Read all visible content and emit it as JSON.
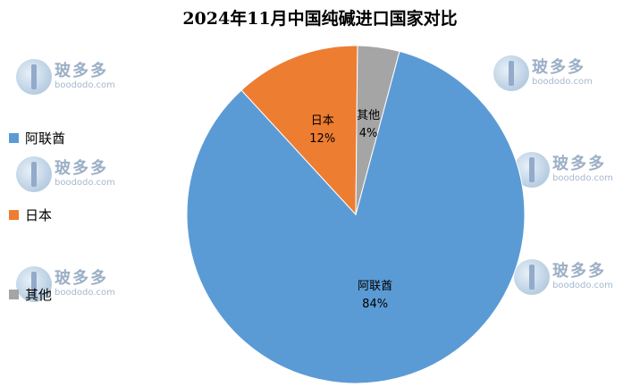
{
  "chart_data": {
    "type": "pie",
    "title": "2024年11月中国纯碱进口国家对比",
    "slices": [
      {
        "label": "阿联酋",
        "value": 84,
        "value_label": "84%",
        "color": "#5b9bd5"
      },
      {
        "label": "日本",
        "value": 12,
        "value_label": "12%",
        "color": "#ed7d31"
      },
      {
        "label": "其他",
        "value": 4,
        "value_label": "4%",
        "color": "#a5a5a5"
      }
    ],
    "legend": [
      "阿联酋",
      "日本",
      "其他"
    ],
    "legend_position": "left"
  },
  "watermark": {
    "brand": "玻多多",
    "url": "boododo.com"
  }
}
